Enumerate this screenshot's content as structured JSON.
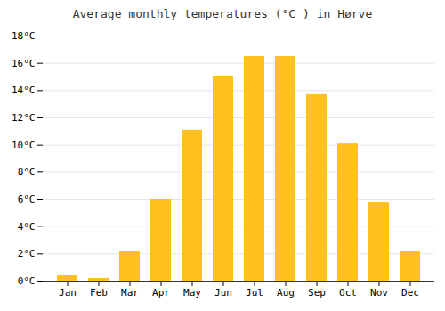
{
  "chart_data": {
    "type": "bar",
    "title": "Average monthly temperatures (°C ) in Hørve",
    "categories": [
      "Jan",
      "Feb",
      "Mar",
      "Apr",
      "May",
      "Jun",
      "Jul",
      "Aug",
      "Sep",
      "Oct",
      "Nov",
      "Dec"
    ],
    "values": [
      0.4,
      0.2,
      2.2,
      6.0,
      11.1,
      15.0,
      16.5,
      16.5,
      13.7,
      10.1,
      5.8,
      2.2
    ],
    "color": "#FFC020",
    "ylim": [
      0,
      18
    ],
    "yticks": [
      {
        "value": 0,
        "label": "0°C"
      },
      {
        "value": 2,
        "label": "2°C"
      },
      {
        "value": 4,
        "label": "4°C"
      },
      {
        "value": 6,
        "label": "6°C"
      },
      {
        "value": 8,
        "label": "8°C"
      },
      {
        "value": 10,
        "label": "10°C"
      },
      {
        "value": 12,
        "label": "12°C"
      },
      {
        "value": 14,
        "label": "14°C"
      },
      {
        "value": 16,
        "label": "16°C"
      },
      {
        "value": 18,
        "label": "18°C"
      }
    ],
    "grid": true
  }
}
